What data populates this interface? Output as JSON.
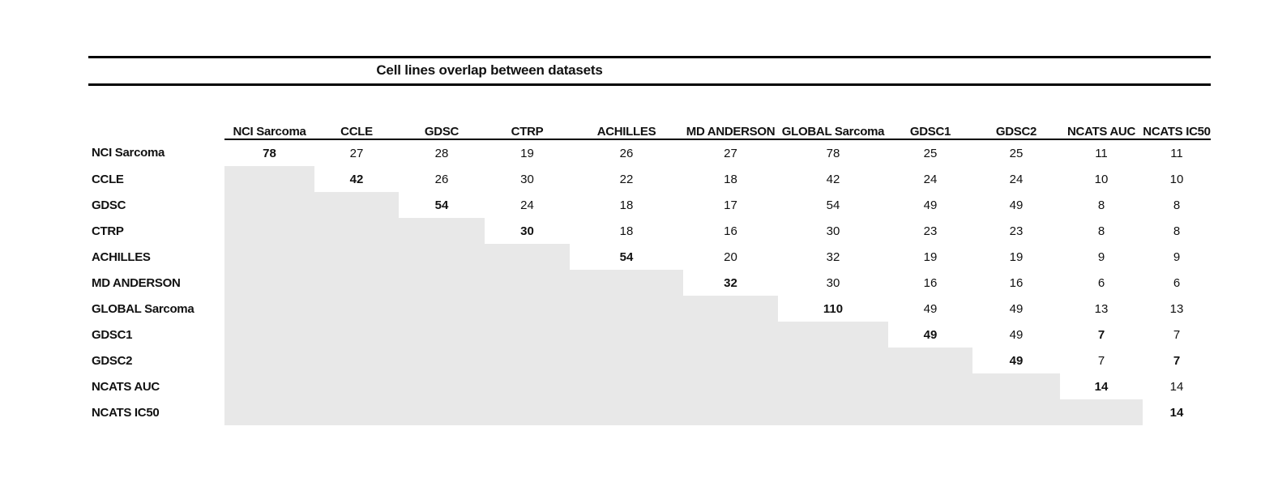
{
  "title": "Cell lines overlap between datasets",
  "table": {
    "columns": [
      "NCI Sarcoma",
      "CCLE",
      "GDSC",
      "CTRP",
      "ACHILLES",
      "MD ANDERSON",
      "GLOBAL Sarcoma",
      "GDSC1",
      "GDSC2",
      "NCATS AUC",
      "NCATS IC50"
    ],
    "rows": [
      {
        "label": "NCI Sarcoma",
        "values": [
          78,
          27,
          28,
          19,
          26,
          27,
          78,
          25,
          25,
          11,
          11
        ]
      },
      {
        "label": "CCLE",
        "values": [
          null,
          42,
          26,
          30,
          22,
          18,
          42,
          24,
          24,
          10,
          10
        ]
      },
      {
        "label": "GDSC",
        "values": [
          null,
          null,
          54,
          24,
          18,
          17,
          54,
          49,
          49,
          8,
          8
        ]
      },
      {
        "label": "CTRP",
        "values": [
          null,
          null,
          null,
          30,
          18,
          16,
          30,
          23,
          23,
          8,
          8
        ]
      },
      {
        "label": "ACHILLES",
        "values": [
          null,
          null,
          null,
          null,
          54,
          20,
          32,
          19,
          19,
          9,
          9
        ]
      },
      {
        "label": "MD ANDERSON",
        "values": [
          null,
          null,
          null,
          null,
          null,
          32,
          30,
          16,
          16,
          6,
          6
        ]
      },
      {
        "label": "GLOBAL Sarcoma",
        "values": [
          null,
          null,
          null,
          null,
          null,
          null,
          110,
          49,
          49,
          13,
          13
        ]
      },
      {
        "label": "GDSC1",
        "values": [
          null,
          null,
          null,
          null,
          null,
          null,
          null,
          49,
          49,
          7,
          7
        ]
      },
      {
        "label": "GDSC2",
        "values": [
          null,
          null,
          null,
          null,
          null,
          null,
          null,
          null,
          49,
          7,
          7
        ]
      },
      {
        "label": "NCATS AUC",
        "values": [
          null,
          null,
          null,
          null,
          null,
          null,
          null,
          null,
          null,
          14,
          14
        ]
      },
      {
        "label": "NCATS IC50",
        "values": [
          null,
          null,
          null,
          null,
          null,
          null,
          null,
          null,
          null,
          null,
          14
        ]
      }
    ],
    "bold_cells": [
      [
        0,
        0
      ],
      [
        1,
        1
      ],
      [
        2,
        2
      ],
      [
        3,
        3
      ],
      [
        4,
        4
      ],
      [
        5,
        5
      ],
      [
        6,
        6
      ],
      [
        7,
        7
      ],
      [
        7,
        9
      ],
      [
        8,
        8
      ],
      [
        8,
        10
      ],
      [
        9,
        9
      ],
      [
        10,
        10
      ]
    ]
  },
  "colors": {
    "shaded": "#e8e8e8",
    "rule": "#000000",
    "text": "#111111"
  }
}
